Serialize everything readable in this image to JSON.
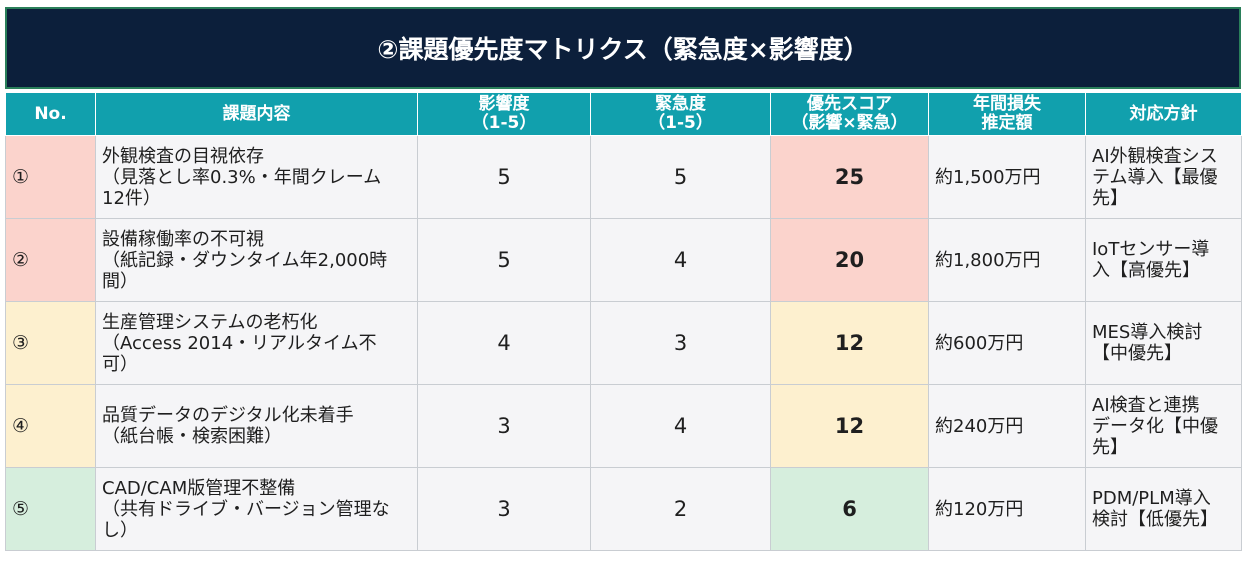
{
  "title": "②課題優先度マトリクス（緊急度×影響度）",
  "columns": {
    "no": "No.",
    "issue": "課題内容",
    "impact": [
      "影響度",
      "（1-5）"
    ],
    "urgency": [
      "緊急度",
      "（1-5）"
    ],
    "score": [
      "優先スコア",
      "（影響×緊急）"
    ],
    "loss": [
      "年間損失",
      "推定額"
    ],
    "policy": "対応方針"
  },
  "rows": [
    {
      "no": "①",
      "issue_lines": [
        "外観検査の目視依存",
        "（見落とし率0.3%・年間クレーム",
        "12件）"
      ],
      "impact": "5",
      "urgency": "5",
      "score": "25",
      "loss": "約1,500万円",
      "policy_lines": [
        "AI外観検査シス",
        "テム導入【最優",
        "先】"
      ],
      "level": "red"
    },
    {
      "no": "②",
      "issue_lines": [
        "設備稼働率の不可視",
        "（紙記録・ダウンタイム年2,000時",
        "間）"
      ],
      "impact": "5",
      "urgency": "4",
      "score": "20",
      "loss": "約1,800万円",
      "policy_lines": [
        "IoTセンサー導",
        "入【高優先】"
      ],
      "level": "red"
    },
    {
      "no": "③",
      "issue_lines": [
        "生産管理システムの老朽化",
        "（Access 2014・リアルタイム不",
        "可）"
      ],
      "impact": "4",
      "urgency": "3",
      "score": "12",
      "loss": "約600万円",
      "policy_lines": [
        "MES導入検討",
        "【中優先】"
      ],
      "level": "yellow"
    },
    {
      "no": "④",
      "issue_lines": [
        "品質データのデジタル化未着手",
        "（紙台帳・検索困難）"
      ],
      "impact": "3",
      "urgency": "4",
      "score": "12",
      "loss": "約240万円",
      "policy_lines": [
        "AI検査と連携",
        "データ化【中優",
        "先】"
      ],
      "level": "yellow"
    },
    {
      "no": "⑤",
      "issue_lines": [
        "CAD/CAM版管理不整備",
        "（共有ドライブ・バージョン管理な",
        "し）"
      ],
      "impact": "3",
      "urgency": "2",
      "score": "6",
      "loss": "約120万円",
      "policy_lines": [
        "PDM/PLM導入",
        "検討【低優先】"
      ],
      "level": "green"
    }
  ]
}
